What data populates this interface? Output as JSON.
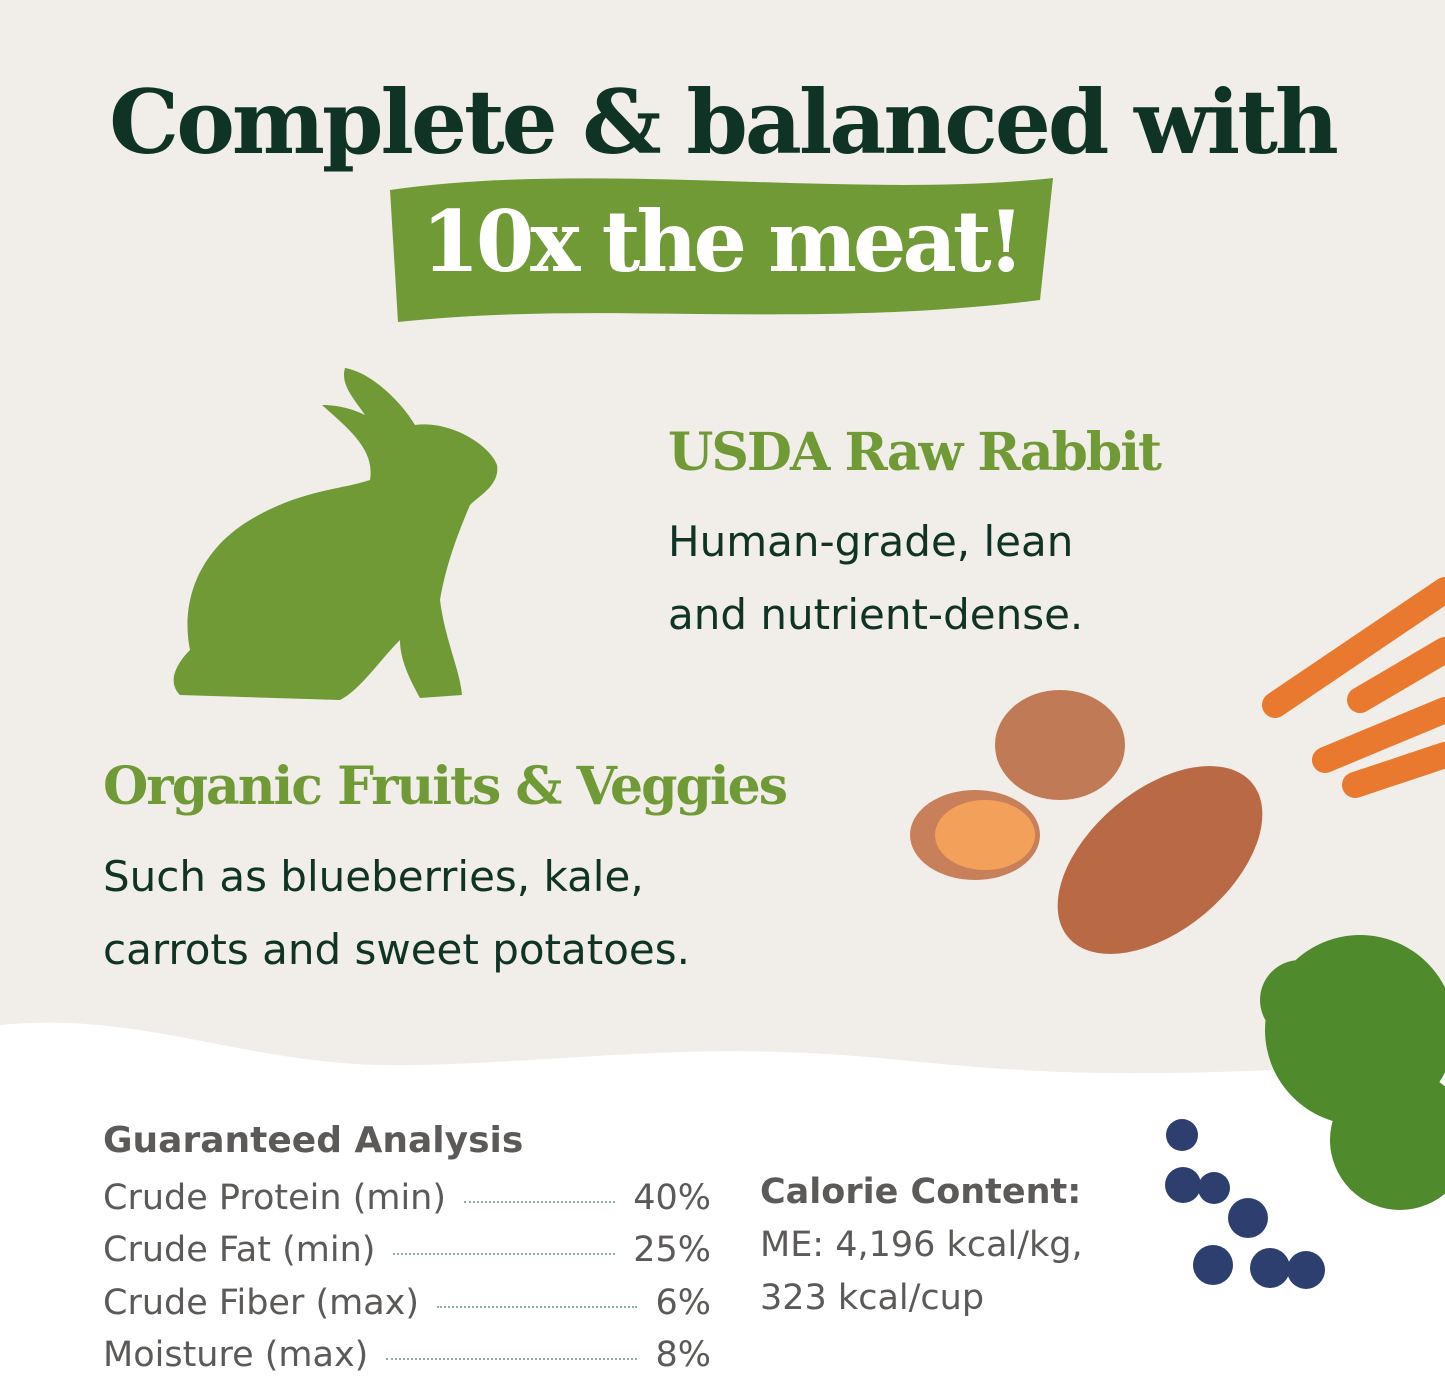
{
  "headline": "Complete & balanced with",
  "banner": "10x the meat!",
  "rabbit": {
    "title": "USDA Raw Rabbit",
    "line1": "Human-grade, lean",
    "line2": "and nutrient-dense."
  },
  "veggies": {
    "title": "Organic Fruits & Veggies",
    "line1": "Such as blueberries, kale,",
    "line2": "carrots and sweet potatoes."
  },
  "analysis": {
    "title": "Guaranteed Analysis",
    "rows": [
      {
        "label": "Crude Protein (min)",
        "value": "40%"
      },
      {
        "label": "Crude Fat (min)",
        "value": "25%"
      },
      {
        "label": "Crude Fiber (max)",
        "value": "6%"
      },
      {
        "label": "Moisture (max)",
        "value": "8%"
      }
    ]
  },
  "calorie": {
    "title": "Calorie Content:",
    "line1": "ME: 4,196 kcal/kg,",
    "line2": "323 kcal/cup"
  },
  "colors": {
    "background": "#f1ede8",
    "dark_green": "#0f3325",
    "accent_green": "#6f9a36",
    "gray": "#5c5a58"
  },
  "icons": [
    "rabbit-silhouette",
    "sweet-potato-image",
    "carrot-image",
    "kale-image",
    "blueberry-image"
  ]
}
